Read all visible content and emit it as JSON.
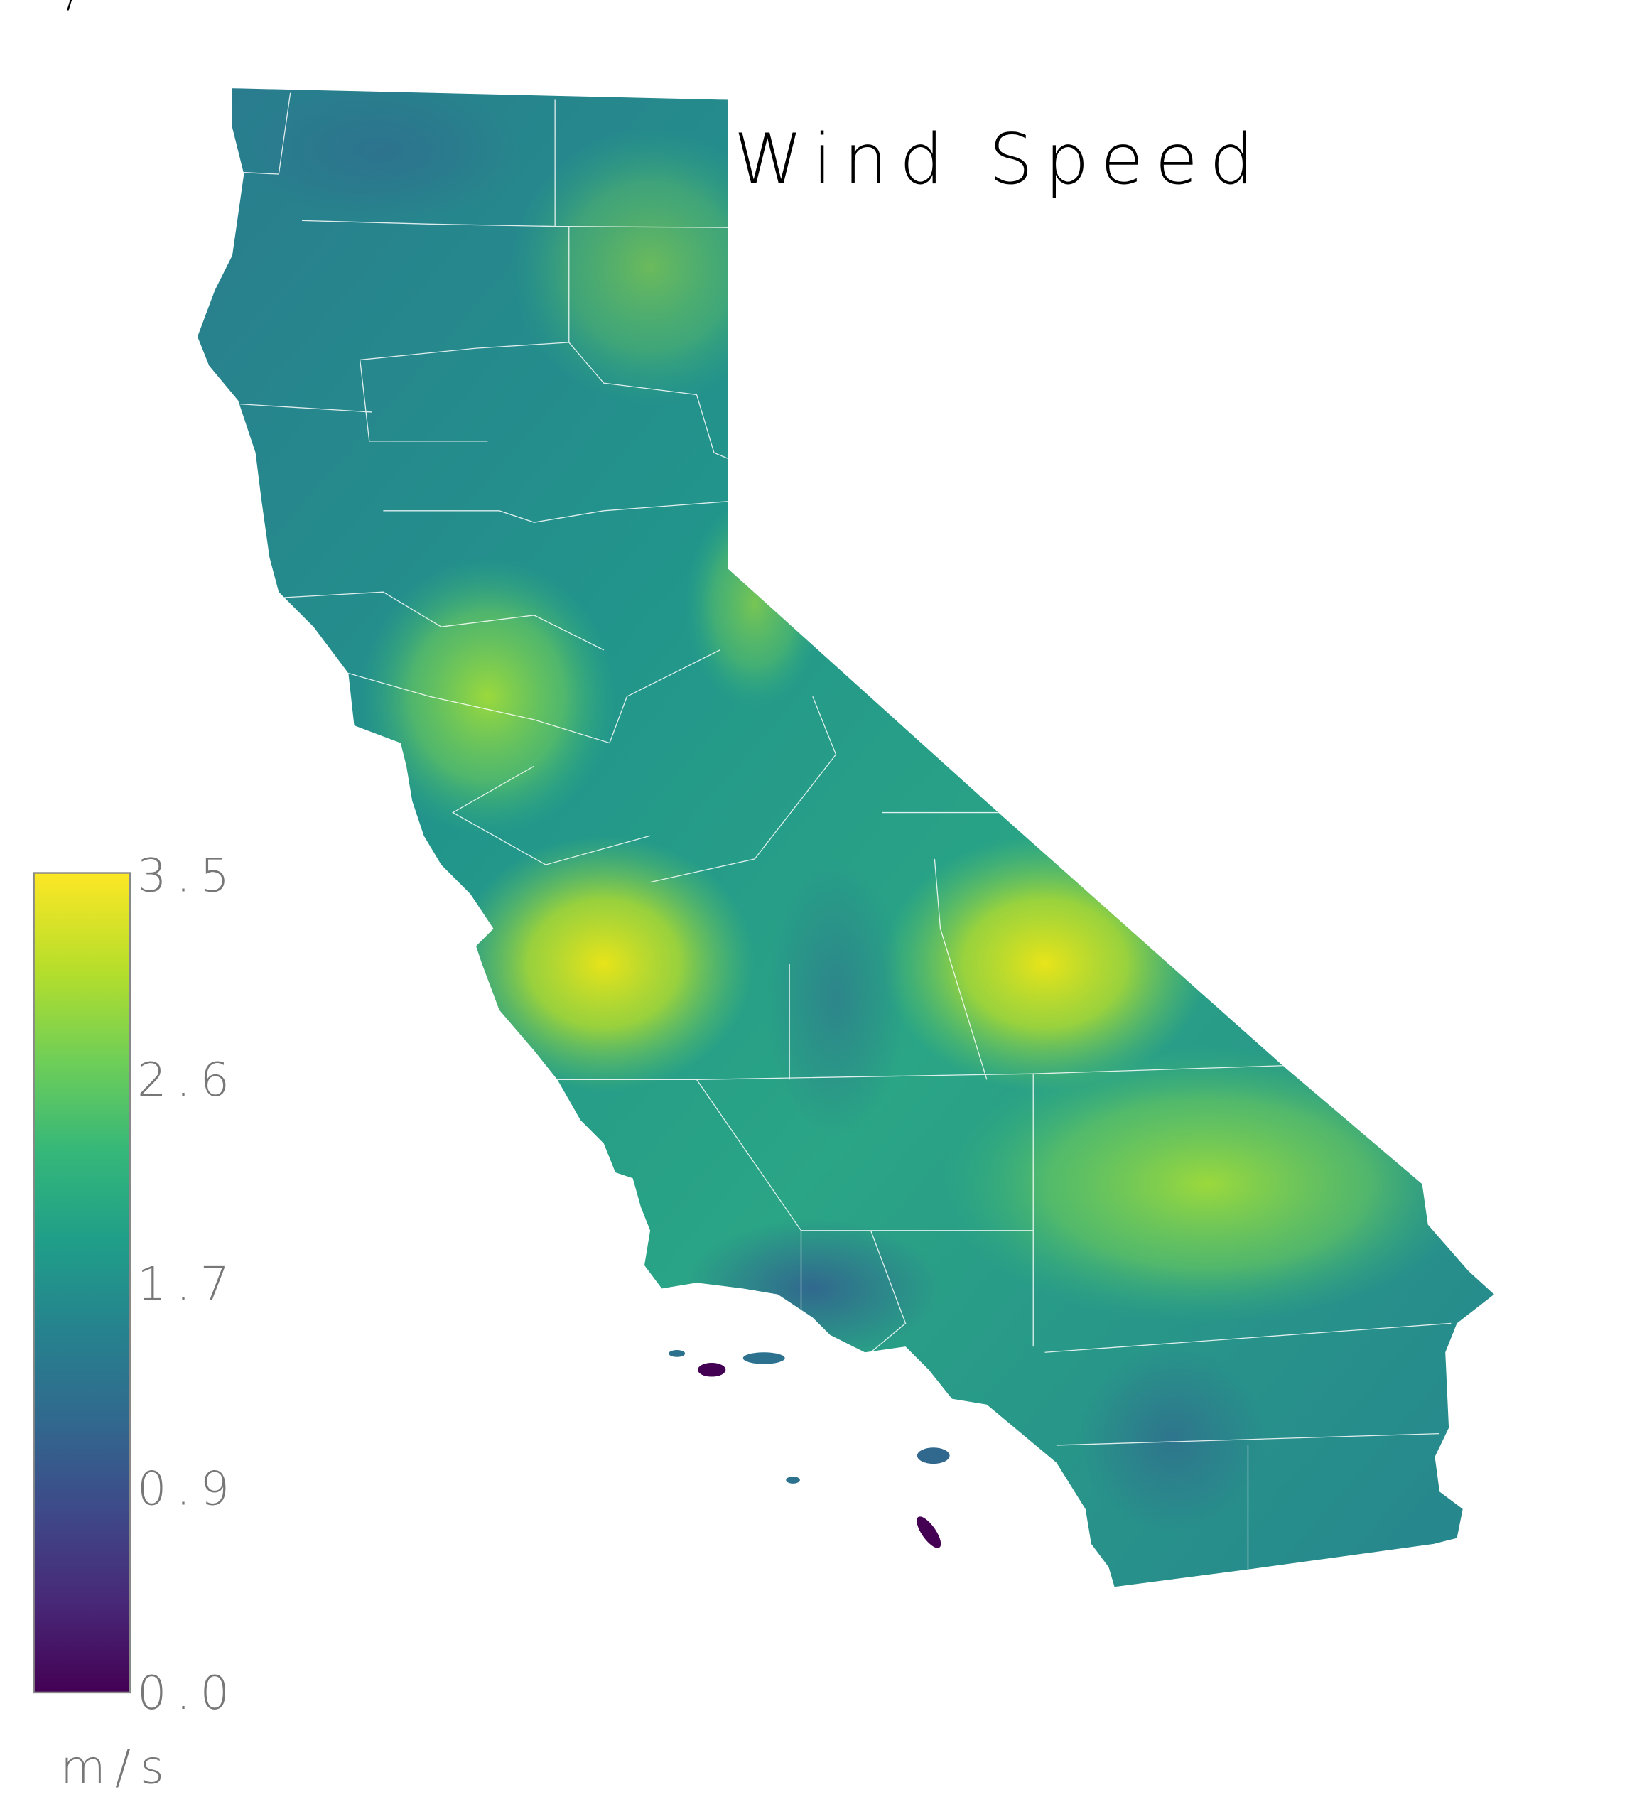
{
  "title": "Wind Speed",
  "corner_mark": "/",
  "legend": {
    "unit": "m/s",
    "ticks": [
      "3.5",
      "2.6",
      "1.7",
      "0.9",
      "0.0"
    ],
    "min": 0.0,
    "max": 3.5,
    "colormap": "viridis",
    "colors": [
      "#440154",
      "#482878",
      "#3e4989",
      "#31688e",
      "#26828e",
      "#1f9e89",
      "#35b779",
      "#6ece58",
      "#b5de2b",
      "#fde725"
    ]
  },
  "map": {
    "region": "California",
    "county_borders": true,
    "border_color": "#ffffff"
  }
}
